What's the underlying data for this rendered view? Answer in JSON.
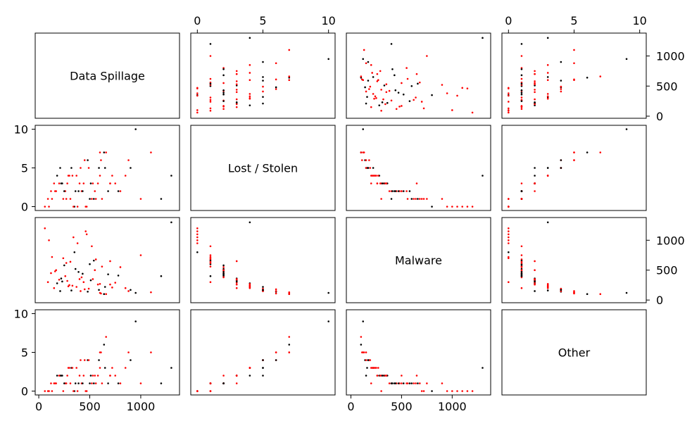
{
  "chart_data": {
    "type": "scatter_matrix",
    "variables": [
      {
        "label": "Data Spillage",
        "lim": [
          -35,
          1380
        ],
        "ticks": [
          0,
          500,
          1000
        ],
        "values": [
          90,
          150,
          210,
          260,
          300,
          350,
          400,
          450,
          500,
          550,
          600,
          650,
          700,
          120,
          180,
          240,
          280,
          320,
          380,
          420,
          480,
          520,
          580,
          640,
          720,
          800,
          900,
          1000,
          1100,
          1300,
          100,
          160,
          220,
          270,
          330,
          360,
          410,
          460,
          510,
          560,
          610,
          680,
          750,
          850,
          950,
          130,
          200,
          250,
          290,
          340,
          390,
          440,
          490,
          540,
          600,
          660,
          1200,
          60,
          170,
          230,
          310,
          370,
          430,
          470,
          530,
          590,
          620,
          700,
          780,
          880
        ]
      },
      {
        "label": "Lost / Stolen",
        "lim": [
          -0.5,
          10.5
        ],
        "ticks": [
          0,
          5,
          10
        ],
        "values": [
          1,
          3,
          5,
          2,
          4,
          0,
          3,
          6,
          1,
          2,
          7,
          5,
          3,
          2,
          4,
          1,
          3,
          5,
          0,
          2,
          6,
          1,
          3,
          7,
          4,
          2,
          5,
          1,
          7,
          4,
          0,
          2,
          3,
          1,
          4,
          2,
          5,
          0,
          3,
          1,
          6,
          2,
          3,
          4,
          10,
          1,
          3,
          2,
          4,
          0,
          2,
          3,
          5,
          1,
          4,
          7,
          1,
          0,
          2,
          3,
          1,
          4,
          2,
          0,
          3,
          5,
          1,
          3,
          2,
          6
        ]
      },
      {
        "label": "Malware",
        "lim": [
          -45,
          1380
        ],
        "ticks": [
          0,
          500,
          1000
        ],
        "values": [
          300,
          200,
          150,
          400,
          250,
          800,
          350,
          180,
          600,
          500,
          120,
          220,
          650,
          450,
          280,
          700,
          320,
          160,
          950,
          380,
          140,
          900,
          260,
          100,
          210,
          550,
          170,
          750,
          130,
          1300,
          1000,
          480,
          360,
          620,
          240,
          520,
          150,
          1150,
          330,
          680,
          110,
          430,
          290,
          200,
          120,
          720,
          340,
          580,
          230,
          1050,
          470,
          300,
          190,
          660,
          270,
          100,
          400,
          1200,
          500,
          310,
          640,
          220,
          440,
          1100,
          350,
          170,
          560,
          260,
          410,
          150
        ]
      },
      {
        "label": "Other",
        "lim": [
          -0.5,
          10.5
        ],
        "ticks": [
          0,
          5,
          10
        ],
        "values": [
          0,
          1,
          2,
          1,
          3,
          0,
          2,
          4,
          1,
          2,
          5,
          3,
          2,
          1,
          2,
          0,
          2,
          3,
          0,
          1,
          4,
          1,
          2,
          6,
          3,
          1,
          4,
          1,
          5,
          3,
          0,
          1,
          2,
          1,
          3,
          1,
          4,
          0,
          2,
          1,
          5,
          1,
          2,
          3,
          9,
          0,
          2,
          1,
          3,
          0,
          1,
          2,
          4,
          1,
          3,
          7,
          1,
          0,
          1,
          2,
          1,
          3,
          1,
          0,
          2,
          4,
          1,
          2,
          1,
          5
        ]
      }
    ],
    "point_colors": [
      "red",
      "red",
      "black",
      "red",
      "red",
      "black",
      "red",
      "red",
      "black",
      "red",
      "red",
      "black",
      "red",
      "red",
      "black",
      "red",
      "red",
      "black",
      "red",
      "red",
      "black",
      "red",
      "red",
      "black",
      "red",
      "red",
      "black",
      "red",
      "red",
      "black",
      "red",
      "red",
      "black",
      "red",
      "red",
      "black",
      "red",
      "red",
      "black",
      "red",
      "red",
      "black",
      "red",
      "red",
      "black",
      "red",
      "red",
      "black",
      "red",
      "red",
      "black",
      "red",
      "red",
      "black",
      "red",
      "red",
      "black",
      "red",
      "red",
      "black",
      "red",
      "red",
      "black",
      "red",
      "red",
      "black",
      "red",
      "red",
      "black",
      "red"
    ]
  }
}
